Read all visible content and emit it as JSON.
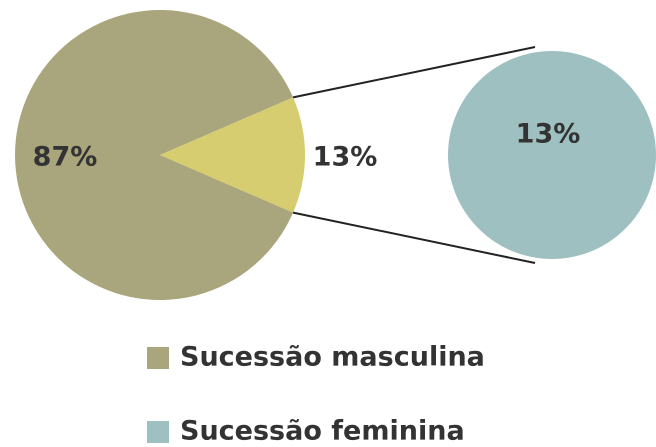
{
  "chart_data": {
    "type": "pie",
    "categories": [
      "Sucessão masculina",
      "Sucessão feminina"
    ],
    "values": [
      87,
      13
    ],
    "value_labels": [
      "87%",
      "13%"
    ],
    "colors": [
      "#a9a57c",
      "#9fc0c0"
    ],
    "split_slice_color": "#d5cd6f",
    "legend": "bottom"
  }
}
